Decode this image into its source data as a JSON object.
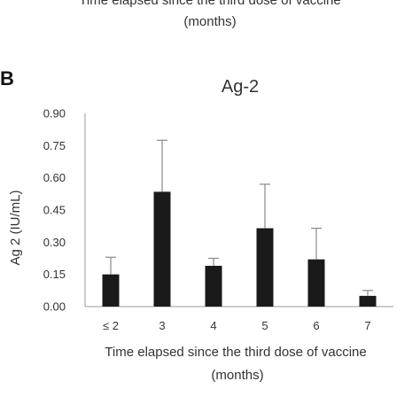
{
  "previous_panel_caption": {
    "line1": "Time elapsed since the third dose of vaccine",
    "line2": "(months)"
  },
  "panel_letter": "B",
  "chart_data": {
    "type": "bar",
    "title": "Ag-2",
    "xlabel_line1": "Time elapsed since the third dose of vaccine",
    "xlabel_line2": "(months)",
    "ylabel": "Ag 2 (IU/mL)",
    "ylim": [
      0,
      0.9
    ],
    "yticks": [
      "0.00",
      "0.15",
      "0.30",
      "0.45",
      "0.60",
      "0.75",
      "0.90"
    ],
    "categories": [
      "≤ 2",
      "3",
      "4",
      "5",
      "6",
      "7"
    ],
    "values": [
      0.15,
      0.535,
      0.19,
      0.365,
      0.22,
      0.05
    ],
    "error_upper": [
      0.08,
      0.24,
      0.035,
      0.205,
      0.145,
      0.025
    ],
    "bar_color": "#1a1a1a",
    "grid": false,
    "legend": "none"
  }
}
